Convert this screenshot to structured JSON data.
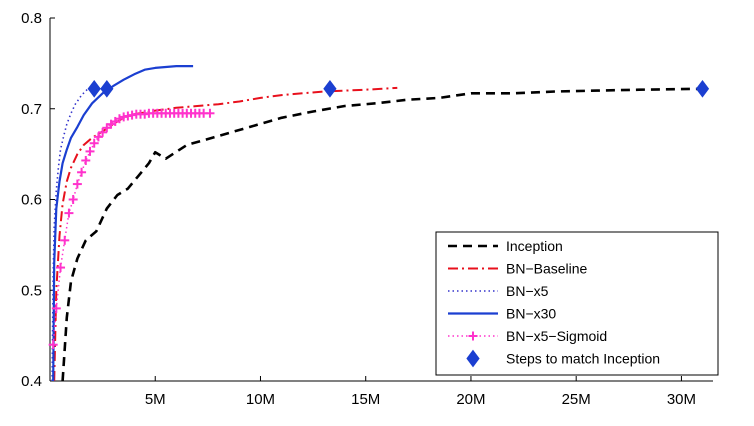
{
  "chart_data": {
    "type": "line",
    "title": "",
    "xlabel": "",
    "ylabel": "",
    "xlim": [
      0,
      31500000
    ],
    "ylim": [
      0.4,
      0.8
    ],
    "x_ticks": [
      {
        "value": 5000000,
        "label": "5M"
      },
      {
        "value": 10000000,
        "label": "10M"
      },
      {
        "value": 15000000,
        "label": "15M"
      },
      {
        "value": 20000000,
        "label": "20M"
      },
      {
        "value": 25000000,
        "label": "25M"
      },
      {
        "value": 30000000,
        "label": "30M"
      }
    ],
    "y_ticks": [
      {
        "value": 0.4,
        "label": "0.4"
      },
      {
        "value": 0.5,
        "label": "0.5"
      },
      {
        "value": 0.6,
        "label": "0.6"
      },
      {
        "value": 0.7,
        "label": "0.7"
      },
      {
        "value": 0.8,
        "label": "0.8"
      }
    ],
    "grid": false,
    "legend_position": "bottom-right",
    "series": [
      {
        "name": "Inception",
        "color": "#000000",
        "style": "dashed",
        "x": [
          600000,
          800000,
          1000000,
          1300000,
          1700000,
          2200000,
          2700000,
          3200000,
          3700000,
          4200000,
          4700000,
          5000000,
          5500000,
          6500000,
          8000000,
          9500000,
          11000000,
          12500000,
          14000000,
          15500000,
          17000000,
          18500000,
          20000000,
          22000000,
          24000000,
          26000000,
          28000000,
          31000000
        ],
        "y": [
          0.4,
          0.47,
          0.51,
          0.535,
          0.555,
          0.565,
          0.59,
          0.605,
          0.612,
          0.626,
          0.64,
          0.652,
          0.645,
          0.66,
          0.67,
          0.68,
          0.69,
          0.697,
          0.703,
          0.706,
          0.71,
          0.712,
          0.717,
          0.717,
          0.719,
          0.72,
          0.721,
          0.722
        ]
      },
      {
        "name": "BN−Baseline",
        "color": "#e8101c",
        "style": "dashdot",
        "x": [
          200000,
          300000,
          450000,
          600000,
          800000,
          1000000,
          1300000,
          1600000,
          2000000,
          2500000,
          3000000,
          3500000,
          4000000,
          5000000,
          6000000,
          7000000,
          8000000,
          9000000,
          10000000,
          11000000,
          12000000,
          13000000,
          14000000,
          15000000,
          16500000
        ],
        "y": [
          0.4,
          0.5,
          0.56,
          0.595,
          0.62,
          0.635,
          0.65,
          0.66,
          0.668,
          0.675,
          0.683,
          0.69,
          0.694,
          0.698,
          0.701,
          0.703,
          0.705,
          0.708,
          0.712,
          0.715,
          0.717,
          0.719,
          0.72,
          0.721,
          0.723
        ]
      },
      {
        "name": "BN−x5",
        "color": "#3333cc",
        "style": "dotted",
        "x": [
          100000,
          150000,
          200000,
          300000,
          400000,
          500000,
          650000,
          800000,
          1000000,
          1200000,
          1500000,
          1800000
        ],
        "y": [
          0.4,
          0.52,
          0.57,
          0.61,
          0.635,
          0.655,
          0.67,
          0.683,
          0.695,
          0.705,
          0.715,
          0.722
        ]
      },
      {
        "name": "BN−x30",
        "color": "#1b3fd1",
        "style": "solid",
        "x": [
          150000,
          200000,
          300000,
          450000,
          600000,
          800000,
          1000000,
          1300000,
          1600000,
          2000000,
          2500000,
          3000000,
          3500000,
          4000000,
          4500000,
          5000000,
          5500000,
          6000000,
          6800000
        ],
        "y": [
          0.4,
          0.53,
          0.59,
          0.62,
          0.64,
          0.655,
          0.668,
          0.68,
          0.693,
          0.706,
          0.717,
          0.725,
          0.732,
          0.738,
          0.743,
          0.745,
          0.746,
          0.747,
          0.747
        ]
      },
      {
        "name": "BN−x5−Sigmoid",
        "color": "#ff33cc",
        "style": "dotted-plus",
        "x": [
          150000,
          300000,
          500000,
          700000,
          900000,
          1100000,
          1300000,
          1500000,
          1700000,
          1900000,
          2100000,
          2300000,
          2500000,
          2700000,
          2900000,
          3100000,
          3300000,
          3500000,
          3700000,
          3900000,
          4100000,
          4300000,
          4500000,
          4700000,
          4900000,
          5100000,
          5300000,
          5500000,
          5700000,
          5900000,
          6100000,
          6300000,
          6500000,
          6700000,
          6900000,
          7100000,
          7300000,
          7600000
        ],
        "y": [
          0.44,
          0.48,
          0.525,
          0.555,
          0.585,
          0.6,
          0.617,
          0.63,
          0.643,
          0.653,
          0.662,
          0.669,
          0.674,
          0.679,
          0.683,
          0.686,
          0.689,
          0.691,
          0.692,
          0.693,
          0.694,
          0.694,
          0.694,
          0.695,
          0.695,
          0.695,
          0.695,
          0.695,
          0.695,
          0.695,
          0.695,
          0.695,
          0.695,
          0.695,
          0.695,
          0.695,
          0.695,
          0.695
        ]
      },
      {
        "name": "Steps to match Inception",
        "color": "#1b3fd1",
        "style": "diamond-markers",
        "x": [
          2100000,
          2700000,
          13300000,
          31000000
        ],
        "y": [
          0.722,
          0.722,
          0.722,
          0.722
        ]
      }
    ]
  }
}
